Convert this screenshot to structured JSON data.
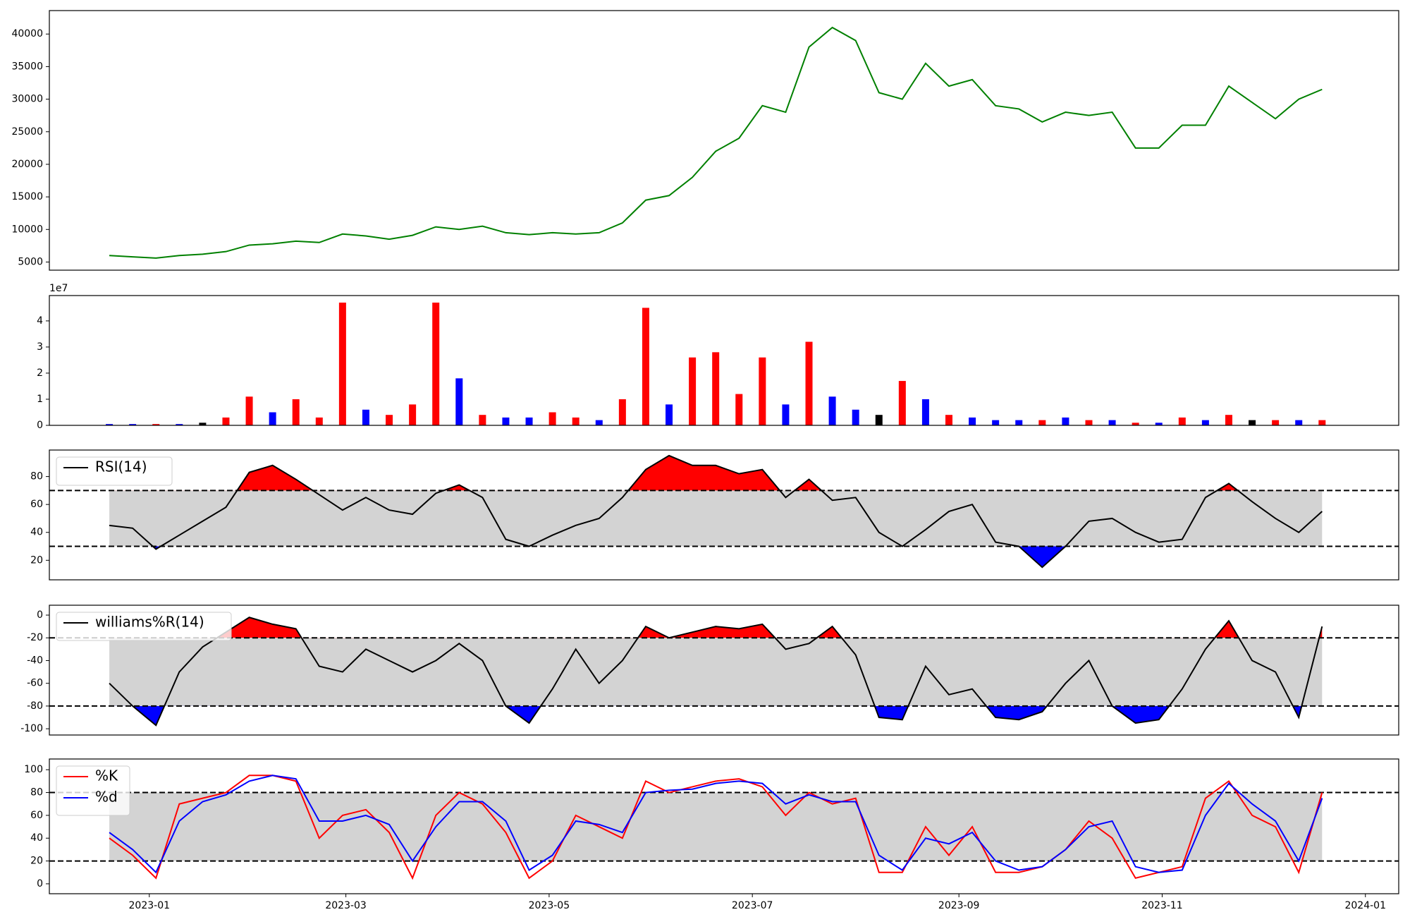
{
  "chart_data": [
    {
      "type": "line",
      "x": [
        19346,
        19353,
        19360,
        19367,
        19374,
        19381,
        19388,
        19395,
        19402,
        19409,
        19416,
        19423,
        19430,
        19437,
        19444,
        19451,
        19458,
        19465,
        19472,
        19479,
        19486,
        19493,
        19500,
        19507,
        19514,
        19521,
        19528,
        19535,
        19542,
        19549,
        19556,
        19563,
        19570,
        19577,
        19584,
        19591,
        19598,
        19605,
        19612,
        19619,
        19626,
        19633,
        19640,
        19647,
        19654,
        19661,
        19668,
        19675,
        19682,
        19689,
        19696,
        19703,
        19710
      ],
      "series": [
        {
          "name": "Close",
          "color": "green",
          "values": [
            6000,
            5800,
            5600,
            6000,
            6200,
            6600,
            7600,
            7800,
            8200,
            8000,
            9300,
            9000,
            8500,
            9100,
            10400,
            10000,
            10500,
            9500,
            9200,
            9500,
            9300,
            9500,
            11000,
            14500,
            15200,
            18000,
            22000,
            24000,
            29000,
            28000,
            38000,
            41000,
            39000,
            31000,
            30000,
            35500,
            32000,
            33000,
            29000,
            28500,
            26500,
            28000,
            27500,
            28000,
            22500,
            22500,
            26000,
            26000,
            32000,
            29500,
            27000,
            30000,
            31500
          ]
        }
      ],
      "ylim": [
        3750,
        43600
      ],
      "yticks": [
        5000,
        10000,
        15000,
        20000,
        25000,
        30000,
        35000,
        40000
      ]
    },
    {
      "type": "bar",
      "offset_label": "1e7",
      "values": [
        0.05,
        0.05,
        0.05,
        0.05,
        0.1,
        0.3,
        1.1,
        0.5,
        1.0,
        0.3,
        4.7,
        0.6,
        0.4,
        0.8,
        4.7,
        1.8,
        0.4,
        0.3,
        0.3,
        0.5,
        0.3,
        0.2,
        1.0,
        4.5,
        0.8,
        2.6,
        2.8,
        1.2,
        2.6,
        0.8,
        3.2,
        1.1,
        0.6,
        0.4,
        1.7,
        1.0,
        0.4,
        0.3,
        0.2,
        0.2,
        0.2,
        0.3,
        0.2,
        0.2,
        0.1,
        0.1,
        0.3,
        0.2,
        0.4,
        0.2,
        0.2,
        0.2,
        0.2
      ],
      "colors": [
        "blue",
        "blue",
        "red",
        "blue",
        "black",
        "red",
        "red",
        "blue",
        "red",
        "red",
        "red",
        "blue",
        "red",
        "red",
        "red",
        "blue",
        "red",
        "blue",
        "blue",
        "red",
        "red",
        "blue",
        "red",
        "red",
        "blue",
        "red",
        "red",
        "red",
        "red",
        "blue",
        "red",
        "blue",
        "blue",
        "black",
        "red",
        "blue",
        "red",
        "blue",
        "blue",
        "blue",
        "red",
        "blue",
        "red",
        "blue",
        "red",
        "blue",
        "red",
        "blue",
        "red",
        "black",
        "red",
        "blue",
        "red"
      ],
      "ylim": [
        0,
        4.97
      ],
      "yticks": [
        0,
        1,
        2,
        3,
        4
      ]
    },
    {
      "type": "oscillator",
      "series": [
        {
          "name": "RSI(14)",
          "color": "black",
          "values": [
            45,
            43,
            28,
            38,
            48,
            58,
            83,
            88,
            78,
            67,
            56,
            65,
            56,
            53,
            68,
            74,
            65,
            35,
            30,
            38,
            45,
            50,
            65,
            85,
            95,
            88,
            88,
            82,
            85,
            65,
            78,
            63,
            65,
            40,
            30,
            42,
            55,
            60,
            33,
            30,
            15,
            30,
            48,
            50,
            40,
            33,
            35,
            65,
            75,
            62,
            50,
            40,
            55
          ]
        }
      ],
      "thresholds": [
        30,
        70
      ],
      "upper_color": "red",
      "lower_color": "blue",
      "band_color": "#d3d3d3",
      "ylim": [
        6,
        99
      ],
      "yticks": [
        20,
        40,
        60,
        80
      ]
    },
    {
      "type": "oscillator",
      "series": [
        {
          "name": "williams%R(14)",
          "color": "black",
          "values": [
            -60,
            -80,
            -97,
            -50,
            -28,
            -15,
            -2,
            -8,
            -12,
            -45,
            -50,
            -30,
            -40,
            -50,
            -40,
            -25,
            -40,
            -80,
            -95,
            -65,
            -30,
            -60,
            -40,
            -10,
            -20,
            -15,
            -10,
            -12,
            -8,
            -30,
            -25,
            -10,
            -35,
            -90,
            -92,
            -45,
            -70,
            -65,
            -90,
            -92,
            -85,
            -60,
            -40,
            -80,
            -95,
            -92,
            -65,
            -30,
            -5,
            -40,
            -50,
            -90,
            -10
          ]
        }
      ],
      "thresholds": [
        -80,
        -20
      ],
      "upper_color": "red",
      "lower_color": "blue",
      "band_color": "#d3d3d3",
      "ylim": [
        -105.5,
        8.7
      ],
      "yticks": [
        -100,
        -80,
        -60,
        -40,
        -20,
        0
      ]
    },
    {
      "type": "oscillator",
      "series": [
        {
          "name": "%K",
          "color": "red",
          "values": [
            40,
            25,
            5,
            70,
            75,
            80,
            95,
            95,
            90,
            40,
            60,
            65,
            45,
            5,
            60,
            80,
            70,
            45,
            5,
            20,
            60,
            50,
            40,
            90,
            80,
            85,
            90,
            92,
            85,
            60,
            80,
            70,
            75,
            10,
            10,
            50,
            25,
            50,
            10,
            10,
            15,
            30,
            55,
            40,
            5,
            10,
            15,
            75,
            90,
            60,
            50,
            10,
            80
          ]
        },
        {
          "name": "%d",
          "color": "blue",
          "values": [
            45,
            30,
            10,
            55,
            72,
            78,
            90,
            95,
            92,
            55,
            55,
            60,
            52,
            20,
            50,
            72,
            72,
            55,
            12,
            25,
            55,
            52,
            45,
            80,
            82,
            83,
            88,
            90,
            88,
            70,
            78,
            72,
            72,
            25,
            12,
            40,
            35,
            45,
            20,
            12,
            15,
            30,
            50,
            55,
            15,
            10,
            12,
            60,
            88,
            70,
            55,
            20,
            75
          ]
        }
      ],
      "thresholds": [
        20,
        80
      ],
      "band_color": "#d3d3d3",
      "ylim": [
        -8.7,
        109.4
      ],
      "yticks": [
        0,
        20,
        40,
        60,
        80,
        100
      ],
      "xlim": [
        19328,
        19733
      ],
      "xticks": [
        {
          "value": 19358,
          "label": "2023-01"
        },
        {
          "value": 19417,
          "label": "2023-03"
        },
        {
          "value": 19478,
          "label": "2023-05"
        },
        {
          "value": 19539,
          "label": "2023-07"
        },
        {
          "value": 19601,
          "label": "2023-09"
        },
        {
          "value": 19662,
          "label": "2023-11"
        },
        {
          "value": 19723,
          "label": "2024-01"
        }
      ]
    }
  ]
}
